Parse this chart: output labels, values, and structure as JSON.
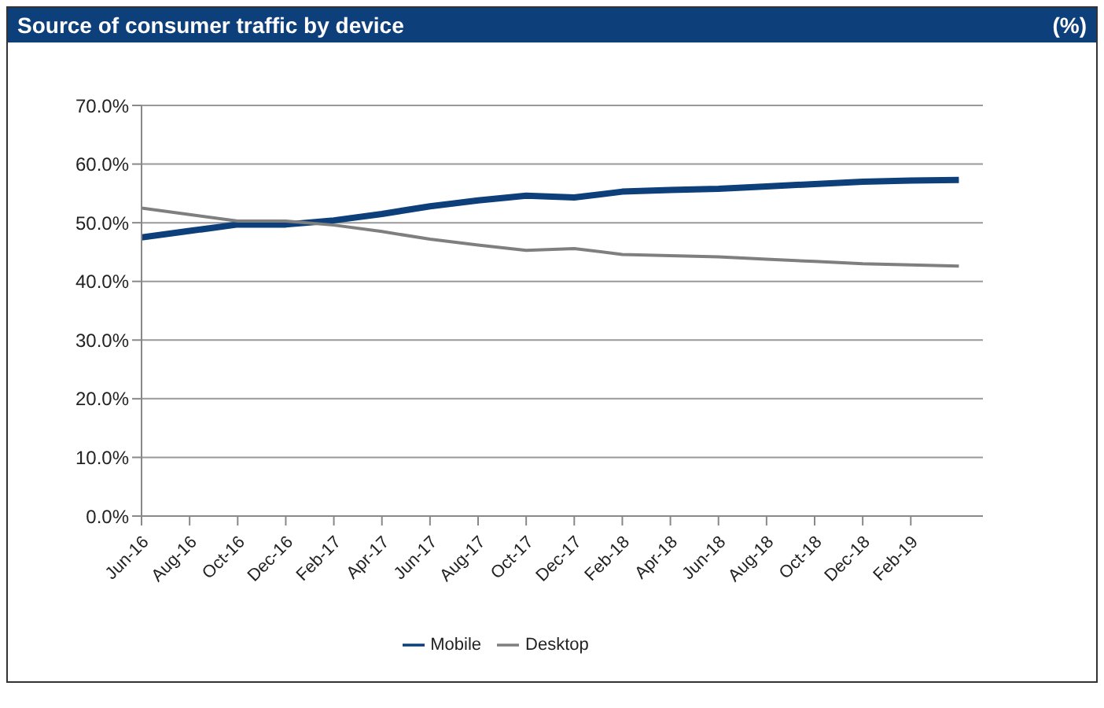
{
  "chart_data": {
    "type": "line",
    "title": "Source of consumer traffic by device",
    "annotations": [
      "(%)"
    ],
    "x": [
      "2016-06",
      "2016-08",
      "2016-10",
      "2016-12",
      "2017-02",
      "2017-04",
      "2017-06",
      "2017-08",
      "2017-10",
      "2017-12",
      "2018-02",
      "2018-04",
      "2018-06",
      "2018-08",
      "2018-10",
      "2018-12",
      "2019-02",
      "2019-04"
    ],
    "series": [
      {
        "name": "Mobile",
        "color": "#0d3f7a",
        "values": [
          47.5,
          48.6,
          49.7,
          49.7,
          50.4,
          51.5,
          52.8,
          53.8,
          54.6,
          54.3,
          55.3,
          55.6,
          55.8,
          56.2,
          56.6,
          57.0,
          57.2,
          57.3
        ]
      },
      {
        "name": "Desktop",
        "color": "#7f7f7f",
        "values": [
          52.5,
          51.4,
          50.3,
          50.3,
          49.6,
          48.5,
          47.2,
          46.2,
          45.3,
          45.6,
          44.6,
          44.4,
          44.2,
          43.8,
          43.4,
          43.0,
          42.8,
          42.6
        ]
      }
    ],
    "xlim": [
      "2016-06",
      "2019-05"
    ],
    "xticks": [
      {
        "value": "2016-06",
        "label": "Jun-16"
      },
      {
        "value": "2016-08",
        "label": "Aug-16"
      },
      {
        "value": "2016-10",
        "label": "Oct-16"
      },
      {
        "value": "2016-12",
        "label": "Dec-16"
      },
      {
        "value": "2017-02",
        "label": "Feb-17"
      },
      {
        "value": "2017-04",
        "label": "Apr-17"
      },
      {
        "value": "2017-06",
        "label": "Jun-17"
      },
      {
        "value": "2017-08",
        "label": "Aug-17"
      },
      {
        "value": "2017-10",
        "label": "Oct-17"
      },
      {
        "value": "2017-12",
        "label": "Dec-17"
      },
      {
        "value": "2018-02",
        "label": "Feb-18"
      },
      {
        "value": "2018-04",
        "label": "Apr-18"
      },
      {
        "value": "2018-06",
        "label": "Jun-18"
      },
      {
        "value": "2018-08",
        "label": "Aug-18"
      },
      {
        "value": "2018-10",
        "label": "Oct-18"
      },
      {
        "value": "2018-12",
        "label": "Dec-18"
      },
      {
        "value": "2019-02",
        "label": "Feb-19"
      }
    ],
    "ylim": [
      0,
      70
    ],
    "yticks": [
      {
        "value": 0,
        "label": "0.0%"
      },
      {
        "value": 10,
        "label": "10.0%"
      },
      {
        "value": 20,
        "label": "20.0%"
      },
      {
        "value": 30,
        "label": "30.0%"
      },
      {
        "value": 40,
        "label": "40.0%"
      },
      {
        "value": 50,
        "label": "50.0%"
      },
      {
        "value": 60,
        "label": "60.0%"
      },
      {
        "value": 70,
        "label": "70.0%"
      }
    ],
    "grid": "y",
    "legend": "bottom",
    "marker": "none",
    "line_style": "solid"
  }
}
